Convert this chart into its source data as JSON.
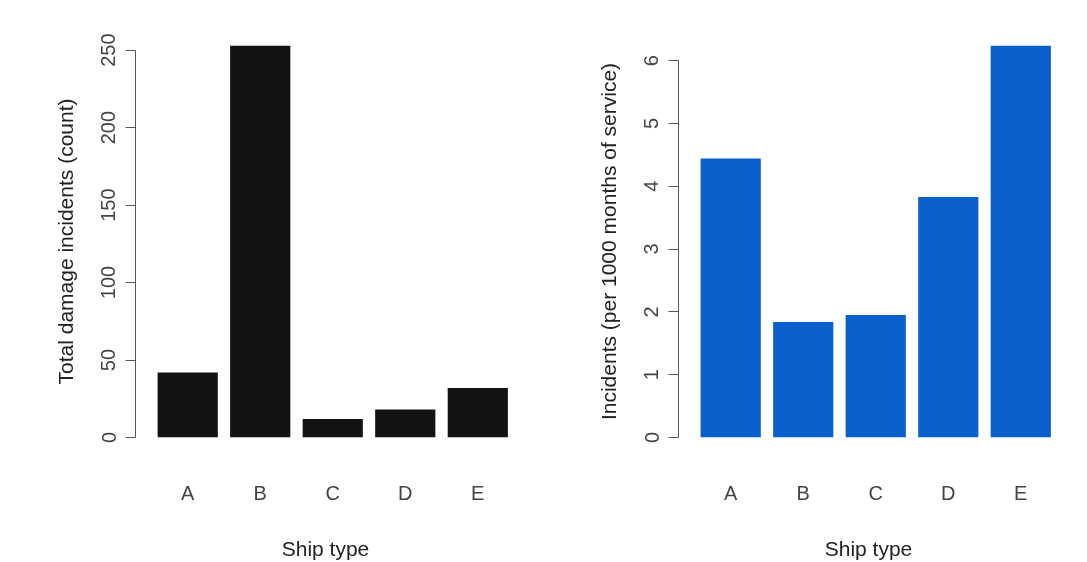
{
  "chart_data": [
    {
      "type": "bar",
      "categories": [
        "A",
        "B",
        "C",
        "D",
        "E"
      ],
      "values": [
        42,
        253,
        12,
        18,
        32
      ],
      "color": "#121214",
      "xlabel": "Ship type",
      "ylabel": "Total damage incidents (count)",
      "ylim": [
        0,
        253
      ],
      "yticks": [
        0,
        50,
        100,
        150,
        200,
        250
      ]
    },
    {
      "type": "bar",
      "categories": [
        "A",
        "B",
        "C",
        "D",
        "E"
      ],
      "values": [
        4.44,
        1.84,
        1.95,
        3.83,
        6.24
      ],
      "color": "#0b5fcc",
      "xlabel": "Ship type",
      "ylabel": "Incidents (per 1000 months of service)",
      "ylim": [
        0,
        6.24
      ],
      "yticks": [
        0,
        1,
        2,
        3,
        4,
        5,
        6
      ]
    }
  ]
}
